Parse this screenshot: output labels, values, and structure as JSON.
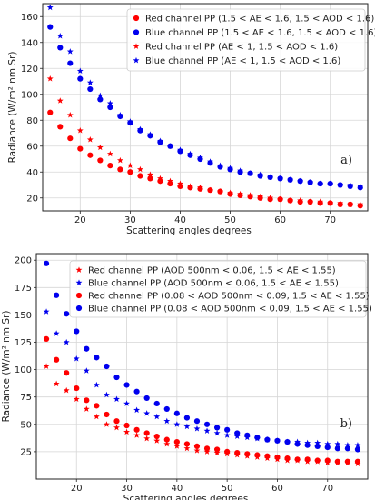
{
  "colors": {
    "red": "#ff0000",
    "blue": "#0000ee",
    "grid": "#d6d6d6",
    "axis": "#222222"
  },
  "chart_data": [
    {
      "type": "scatter",
      "panel_label": "a)",
      "xlabel": "Scattering angles degrees",
      "ylabel": "Radiance (W/m² nm Sr)",
      "xlim": [
        12.5,
        77.5
      ],
      "ylim": [
        10,
        170
      ],
      "xticks": [
        20,
        30,
        40,
        50,
        60,
        70
      ],
      "yticks": [
        20,
        40,
        60,
        80,
        100,
        120,
        140,
        160
      ],
      "grid": true,
      "legend_position": "top-right",
      "series": [
        {
          "name": "Red channel PP (1.5 < AE < 1.6, 1.5 < AOD < 1.6)",
          "color": "#ff0000",
          "marker": "circle",
          "x": [
            14,
            16,
            18,
            20,
            22,
            24,
            26,
            28,
            30,
            32,
            34,
            36,
            38,
            40,
            42,
            44,
            46,
            48,
            50,
            52,
            54,
            56,
            58,
            60,
            62,
            64,
            66,
            68,
            70,
            72,
            74,
            76
          ],
          "y": [
            86,
            75,
            66,
            58,
            53,
            49,
            45,
            42,
            40,
            37,
            35,
            33,
            31,
            29,
            28,
            27,
            26,
            25,
            23,
            22,
            21,
            20,
            19,
            19,
            18,
            17,
            17,
            16,
            16,
            15,
            15,
            14
          ]
        },
        {
          "name": "Blue channel PP (1.5 < AE < 1.6, 1.5 < AOD < 1.6)",
          "color": "#0000ee",
          "marker": "circle",
          "x": [
            14,
            16,
            18,
            20,
            22,
            24,
            26,
            28,
            30,
            32,
            34,
            36,
            38,
            40,
            42,
            44,
            46,
            48,
            50,
            52,
            54,
            56,
            58,
            60,
            62,
            64,
            66,
            68,
            70,
            72,
            74,
            76
          ],
          "y": [
            152,
            136,
            124,
            112,
            104,
            96,
            90,
            83,
            78,
            72,
            68,
            63,
            60,
            56,
            53,
            50,
            47,
            44,
            42,
            40,
            39,
            37,
            36,
            35,
            34,
            33,
            32,
            31,
            31,
            30,
            29,
            28
          ]
        },
        {
          "name": "Red channel PP (AE < 1, 1.5 < AOD < 1.6)",
          "color": "#ff0000",
          "marker": "star",
          "x": [
            14,
            16,
            18,
            20,
            22,
            24,
            26,
            28,
            30,
            32,
            34,
            36,
            38,
            40,
            42,
            44,
            46,
            48,
            50,
            52,
            54,
            56,
            58,
            60,
            62,
            64,
            66,
            68,
            70,
            72,
            74,
            76
          ],
          "y": [
            112,
            95,
            84,
            72,
            65,
            59,
            54,
            49,
            45,
            42,
            38,
            35,
            33,
            31,
            29,
            28,
            26,
            25,
            24,
            23,
            22,
            21,
            20,
            19,
            18,
            18,
            17,
            17,
            16,
            16,
            15,
            15
          ]
        },
        {
          "name": "Blue channel PP (AE < 1, 1.5 < AOD < 1.6)",
          "color": "#0000ee",
          "marker": "star",
          "x": [
            14,
            16,
            18,
            20,
            22,
            24,
            26,
            28,
            30,
            32,
            34,
            36,
            38,
            40,
            42,
            44,
            46,
            48,
            50,
            52,
            54,
            56,
            58,
            60,
            62,
            64,
            66,
            68,
            70,
            72,
            74,
            76
          ],
          "y": [
            167,
            145,
            133,
            118,
            109,
            99,
            93,
            84,
            79,
            73,
            69,
            64,
            60,
            57,
            54,
            51,
            48,
            45,
            43,
            41,
            39,
            38,
            36,
            35,
            34,
            33,
            32,
            31,
            31,
            30,
            30,
            29
          ]
        }
      ]
    },
    {
      "type": "scatter",
      "panel_label": "b)",
      "xlabel": "Scattering angles degrees",
      "ylabel": "Radiance (W/m² nm Sr)",
      "xlim": [
        12,
        78
      ],
      "ylim": [
        0,
        206
      ],
      "xticks": [
        20,
        30,
        40,
        50,
        60,
        70
      ],
      "yticks": [
        25,
        50,
        75,
        100,
        125,
        150,
        175,
        200
      ],
      "grid": true,
      "legend_position": "top-right",
      "series": [
        {
          "name": "Red channel PP (AOD 500nm < 0.06, 1.5 < AE < 1.55)",
          "color": "#ff0000",
          "marker": "star",
          "x": [
            14,
            16,
            18,
            20,
            22,
            24,
            26,
            28,
            30,
            32,
            34,
            36,
            38,
            40,
            42,
            44,
            46,
            48,
            50,
            52,
            54,
            56,
            58,
            60,
            62,
            64,
            66,
            68,
            70,
            72,
            74,
            76
          ],
          "y": [
            103,
            87,
            81,
            73,
            64,
            57,
            50,
            47,
            43,
            40,
            37,
            35,
            32,
            30,
            28,
            26,
            25,
            24,
            23,
            22,
            21,
            20,
            19,
            18,
            17,
            17,
            16,
            16,
            15,
            15,
            15,
            14
          ]
        },
        {
          "name": "Blue channel PP (AOD 500nm < 0.06, 1.5 < AE < 1.55)",
          "color": "#0000ee",
          "marker": "star",
          "x": [
            14,
            16,
            18,
            20,
            22,
            24,
            26,
            28,
            30,
            32,
            34,
            36,
            38,
            40,
            42,
            44,
            46,
            48,
            50,
            52,
            54,
            56,
            58,
            60,
            62,
            64,
            66,
            68,
            70,
            72,
            74,
            76
          ],
          "y": [
            153,
            133,
            125,
            110,
            99,
            86,
            77,
            73,
            69,
            63,
            60,
            57,
            53,
            50,
            48,
            46,
            44,
            42,
            40,
            39,
            38,
            37,
            36,
            35,
            34,
            34,
            33,
            33,
            32,
            32,
            31,
            31
          ]
        },
        {
          "name": "Red channel PP (0.08 < AOD 500nm < 0.09, 1.5 < AE < 1.55)",
          "color": "#ff0000",
          "marker": "circle",
          "x": [
            14,
            16,
            18,
            20,
            22,
            24,
            26,
            28,
            30,
            32,
            34,
            36,
            38,
            40,
            42,
            44,
            46,
            48,
            50,
            52,
            54,
            56,
            58,
            60,
            62,
            64,
            66,
            68,
            70,
            72,
            74,
            76
          ],
          "y": [
            128,
            109,
            97,
            83,
            72,
            67,
            59,
            53,
            49,
            45,
            42,
            39,
            36,
            34,
            32,
            30,
            28,
            27,
            25,
            24,
            23,
            22,
            21,
            20,
            19,
            18,
            18,
            17,
            17,
            16,
            16,
            16
          ]
        },
        {
          "name": "Blue channel PP (0.08 < AOD 500nm < 0.09, 1.5 < AE < 1.55)",
          "color": "#0000ee",
          "marker": "circle",
          "x": [
            14,
            16,
            18,
            20,
            22,
            24,
            26,
            28,
            30,
            32,
            34,
            36,
            38,
            40,
            42,
            44,
            46,
            48,
            50,
            52,
            54,
            56,
            58,
            60,
            62,
            64,
            66,
            68,
            70,
            72,
            74,
            76
          ],
          "y": [
            197,
            168,
            151,
            135,
            119,
            111,
            103,
            93,
            86,
            80,
            74,
            69,
            64,
            60,
            56,
            53,
            50,
            47,
            45,
            42,
            40,
            38,
            36,
            35,
            34,
            32,
            31,
            30,
            29,
            28,
            28,
            27
          ]
        }
      ]
    }
  ]
}
